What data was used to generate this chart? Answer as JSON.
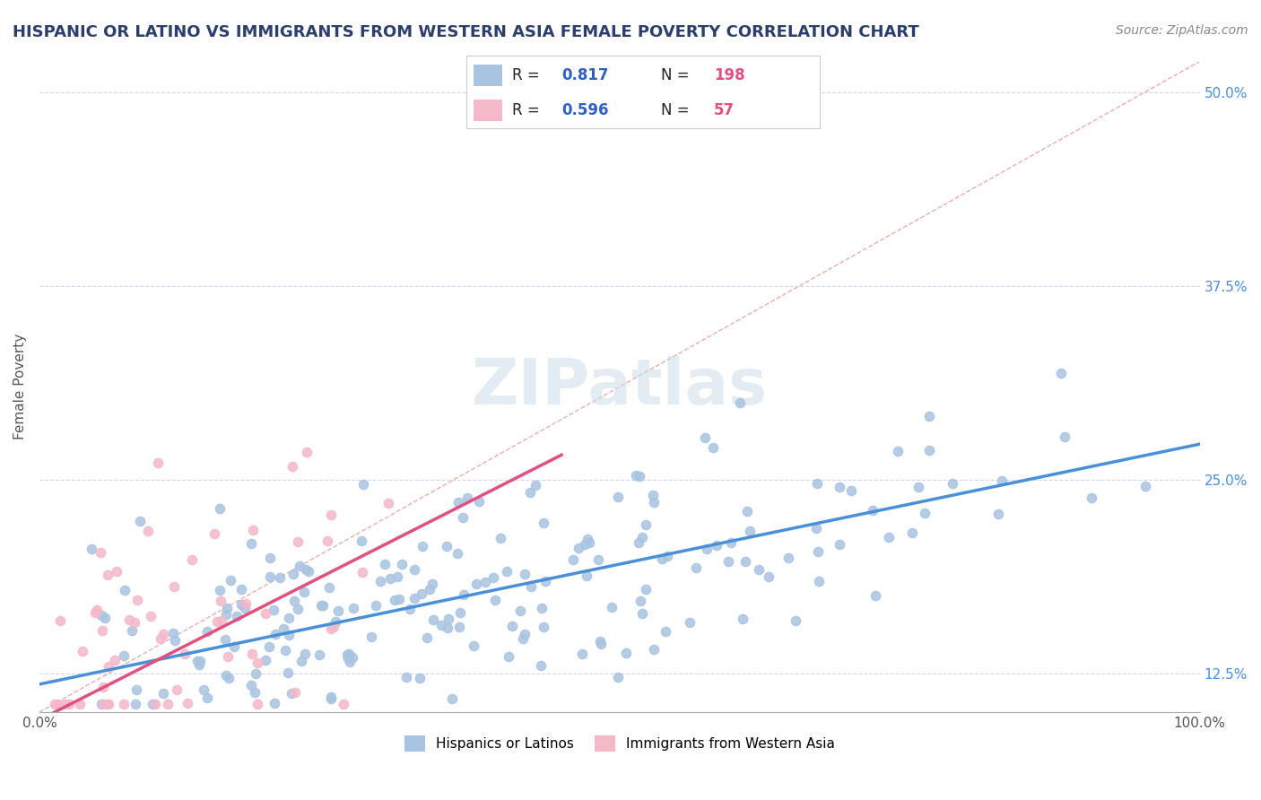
{
  "title": "HISPANIC OR LATINO VS IMMIGRANTS FROM WESTERN ASIA FEMALE POVERTY CORRELATION CHART",
  "source": "Source: ZipAtlas.com",
  "xlabel": "",
  "ylabel": "Female Poverty",
  "xlim": [
    0.0,
    1.0
  ],
  "ylim": [
    0.1,
    0.52
  ],
  "xticks": [
    0.0,
    0.1,
    0.2,
    0.3,
    0.4,
    0.5,
    0.6,
    0.7,
    0.8,
    0.9,
    1.0
  ],
  "xticklabels": [
    "0.0%",
    "",
    "",
    "",
    "",
    "",
    "",
    "",
    "",
    "",
    "100.0%"
  ],
  "ytick_positions": [
    0.125,
    0.25,
    0.375,
    0.5
  ],
  "ytick_labels": [
    "12.5%",
    "25.0%",
    "37.5%",
    "50.0%"
  ],
  "blue_R": 0.817,
  "blue_N": 198,
  "pink_R": 0.596,
  "pink_N": 57,
  "blue_color": "#a8c4e0",
  "pink_color": "#f4b8c8",
  "blue_line_color": "#4a90d9",
  "pink_line_color": "#e05080",
  "diagonal_color": "#e8b0b0",
  "grid_color": "#d0d8e8",
  "background_color": "#ffffff",
  "watermark": "ZIPatlas",
  "title_color": "#2c3e6b",
  "source_color": "#888888",
  "legend_R_color": "#3060c0",
  "legend_N_color": "#e05080",
  "blue_scatter_seed": 42,
  "pink_scatter_seed": 7,
  "blue_line_slope": 0.155,
  "blue_line_intercept": 0.118,
  "pink_line_slope": 0.38,
  "pink_line_intercept": 0.095
}
